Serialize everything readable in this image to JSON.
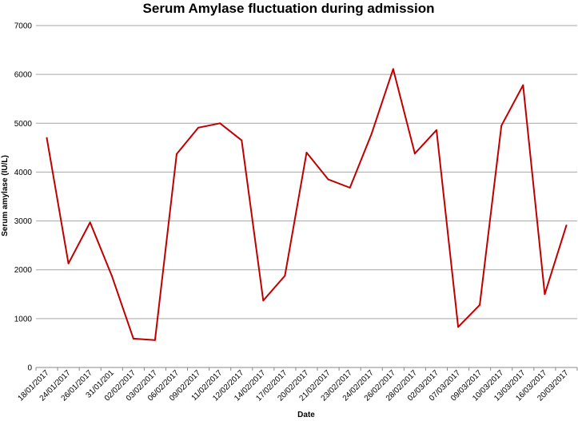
{
  "chart_data": {
    "type": "line",
    "title": "Serum Amylase fluctuation during admission",
    "xlabel": "Date",
    "ylabel": "Serum amylase (IU/L)",
    "ylim": [
      0,
      7000
    ],
    "yticks": [
      0,
      1000,
      2000,
      3000,
      4000,
      5000,
      6000,
      7000
    ],
    "grid": true,
    "legend": "none",
    "line_color": "#c00000",
    "categories": [
      "18/01/2017",
      "24/01/2017",
      "26/01/2017",
      "31/01/201",
      "02/02/2017",
      "03/02/2017",
      "06/02/2017",
      "09/02/2017",
      "11/02/2017",
      "12/02/2017",
      "14/02/2017",
      "17/02/2017",
      "20/02/2017",
      "21/02/2017",
      "23/02/2017",
      "24/02/2017",
      "26/02/2017",
      "28/02/2017",
      "02/03/2017",
      "07/03/2017",
      "09/03/2017",
      "10/03/2017",
      "13/03/2017",
      "16/03/2017",
      "20/03/2017"
    ],
    "values": [
      4700,
      2130,
      2970,
      1880,
      590,
      560,
      4370,
      4910,
      5000,
      4650,
      1370,
      1880,
      4400,
      3850,
      3680,
      4780,
      6110,
      4380,
      4860,
      830,
      1280,
      4950,
      5780,
      1500,
      2910
    ]
  }
}
